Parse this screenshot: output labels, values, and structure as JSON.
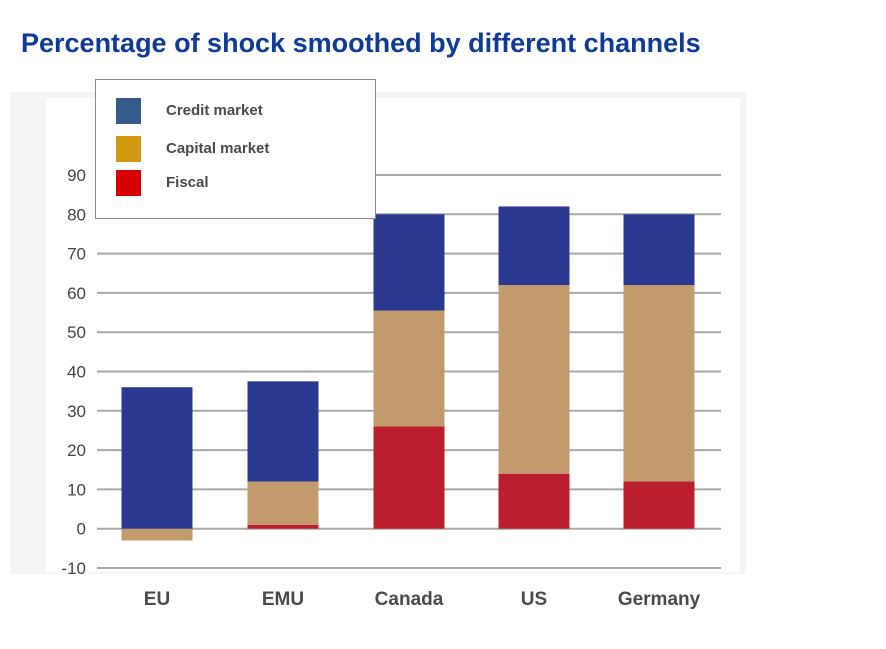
{
  "chart_data": {
    "type": "bar",
    "stacked": true,
    "title": "Percentage of shock smoothed by different channels",
    "categories": [
      "EU",
      "EMU",
      "Canada",
      "US",
      "Germany"
    ],
    "series": [
      {
        "name": "Fiscal",
        "color": "#bb1e2d",
        "values": [
          0,
          1,
          26,
          14,
          12
        ]
      },
      {
        "name": "Capital market",
        "color": "#c39a6c",
        "values": [
          -3,
          11,
          29.5,
          48,
          50
        ]
      },
      {
        "name": "Credit market",
        "color": "#2b388f",
        "values": [
          36,
          25.5,
          24.5,
          20,
          18
        ]
      }
    ],
    "ylim": [
      -10,
      90
    ],
    "yticks": [
      "90",
      "80",
      "70",
      "60",
      "50",
      "40",
      "30",
      "20",
      "10",
      "0",
      "-10"
    ],
    "grid": true,
    "legend": {
      "placement": "top-left",
      "items": [
        {
          "label": "Credit market",
          "color": "#355a8c"
        },
        {
          "label": "Capital market",
          "color": "#cf9a10"
        },
        {
          "label": "Fiscal",
          "color": "#d90000"
        }
      ]
    }
  }
}
